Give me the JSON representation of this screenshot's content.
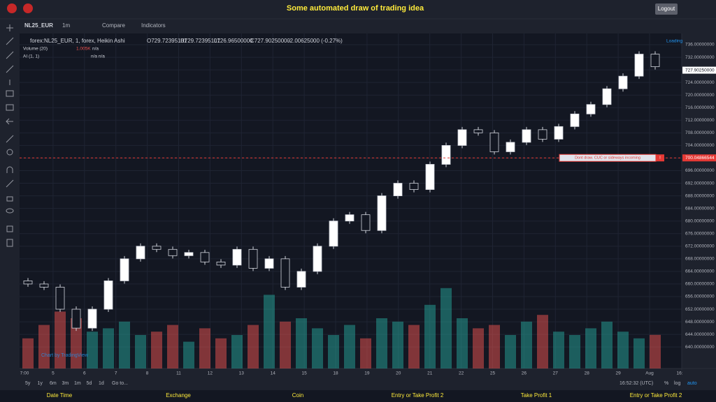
{
  "header": {
    "title": "Some automated draw of trading idea",
    "logout": "Logout"
  },
  "toolbar": {
    "symbol": "NL25_EUR",
    "interval": "1m",
    "compare": "Compare",
    "indicators": "Indicators"
  },
  "chart_data": {
    "type": "candlestick",
    "legend": {
      "symbol": "forex:NL25_EUR, 1, forex, Heikin Ashi",
      "open": "O729.72395101",
      "high": "H729.72395101",
      "low": "L726.96500000",
      "close": "C727.90250000",
      "change": "-2.00625000 (-0.27%)",
      "volume": "Volume (20)",
      "volume_value": "1.005K",
      "volume_na": "n/a",
      "ai": "AI (1, 1)",
      "ai_na": "n/a  n/a",
      "loading": "Loading"
    },
    "x_labels": [
      "7:00",
      "5",
      "6",
      "7",
      "8",
      "11",
      "12",
      "13",
      "14",
      "15",
      "18",
      "19",
      "20",
      "21",
      "22",
      "25",
      "26",
      "27",
      "28",
      "29",
      "Aug",
      "16:"
    ],
    "open": [
      661,
      660,
      659,
      652,
      646,
      652,
      661,
      668,
      672,
      671,
      669,
      670,
      667,
      666,
      671,
      665,
      668,
      659,
      664,
      672,
      680,
      682,
      677,
      688,
      692,
      690,
      698,
      704,
      709,
      708,
      702,
      705,
      709,
      706,
      710,
      714,
      717,
      722,
      726,
      733
    ],
    "close": [
      660,
      659,
      652,
      646,
      652,
      661,
      668,
      672,
      671,
      669,
      670,
      667,
      666,
      671,
      665,
      668,
      659,
      664,
      672,
      680,
      682,
      677,
      688,
      692,
      690,
      698,
      704,
      709,
      708,
      702,
      705,
      709,
      706,
      710,
      714,
      717,
      722,
      726,
      733,
      729
    ],
    "volume": [
      900,
      1300,
      1700,
      1500,
      1100,
      1200,
      1400,
      1000,
      1100,
      1300,
      800,
      1200,
      900,
      1000,
      1300,
      2200,
      1400,
      1500,
      1200,
      1000,
      1300,
      900,
      1500,
      1400,
      1300,
      1900,
      2400,
      1500,
      1200,
      1300,
      1000,
      1400,
      1600,
      1100,
      1000,
      1200,
      1400,
      1100,
      900,
      1005
    ],
    "ylim": [
      638,
      738
    ],
    "yticks": [
      {
        "value": 640,
        "label": "640.00000000"
      },
      {
        "value": 644,
        "label": "644.00000000"
      },
      {
        "value": 648,
        "label": "648.00000000"
      },
      {
        "value": 652,
        "label": "652.00000000"
      },
      {
        "value": 656,
        "label": "656.00000000"
      },
      {
        "value": 660,
        "label": "660.00000000"
      },
      {
        "value": 664,
        "label": "664.00000000"
      },
      {
        "value": 668,
        "label": "668.00000000"
      },
      {
        "value": 672,
        "label": "672.00000000"
      },
      {
        "value": 676,
        "label": "676.00000000"
      },
      {
        "value": 680,
        "label": "680.00000000"
      },
      {
        "value": 684,
        "label": "684.00000000"
      },
      {
        "value": 688,
        "label": "688.00000000"
      },
      {
        "value": 692,
        "label": "692.00000000"
      },
      {
        "value": 696,
        "label": "696.00000000"
      },
      {
        "value": 700,
        "label": "700.00000000"
      },
      {
        "value": 704,
        "label": "704.00000000"
      },
      {
        "value": 708,
        "label": "708.00000000"
      },
      {
        "value": 712,
        "label": "712.00000000"
      },
      {
        "value": 716,
        "label": "716.00000000"
      },
      {
        "value": 720,
        "label": "720.00000000"
      },
      {
        "value": 724,
        "label": "724.00000000"
      },
      {
        "value": 728,
        "label": "728.00000000"
      },
      {
        "value": 732,
        "label": "732.00000000"
      },
      {
        "value": 736,
        "label": "736.00000000"
      }
    ],
    "alert_line": {
      "value": 700.04866544,
      "label": "700.04866544",
      "text": "Dont draw. CUC or sideways incoming",
      "icon": "!"
    },
    "last_price": {
      "value": 727.9025,
      "label": "727.90250000"
    },
    "watermark": "Chart by TradingView"
  },
  "bottom_bar": {
    "ranges": [
      "5y",
      "1y",
      "6m",
      "3m",
      "1m",
      "5d",
      "1d"
    ],
    "goto": "Go to...",
    "time": "16:52:32 (UTC)",
    "percent": "%",
    "log": "log",
    "auto": "auto"
  },
  "footer": [
    "Date Time",
    "Exchange",
    "Coin",
    "Entry or Take Profit 2",
    "Take Profit 1",
    "Entry or Take Profit 2"
  ]
}
